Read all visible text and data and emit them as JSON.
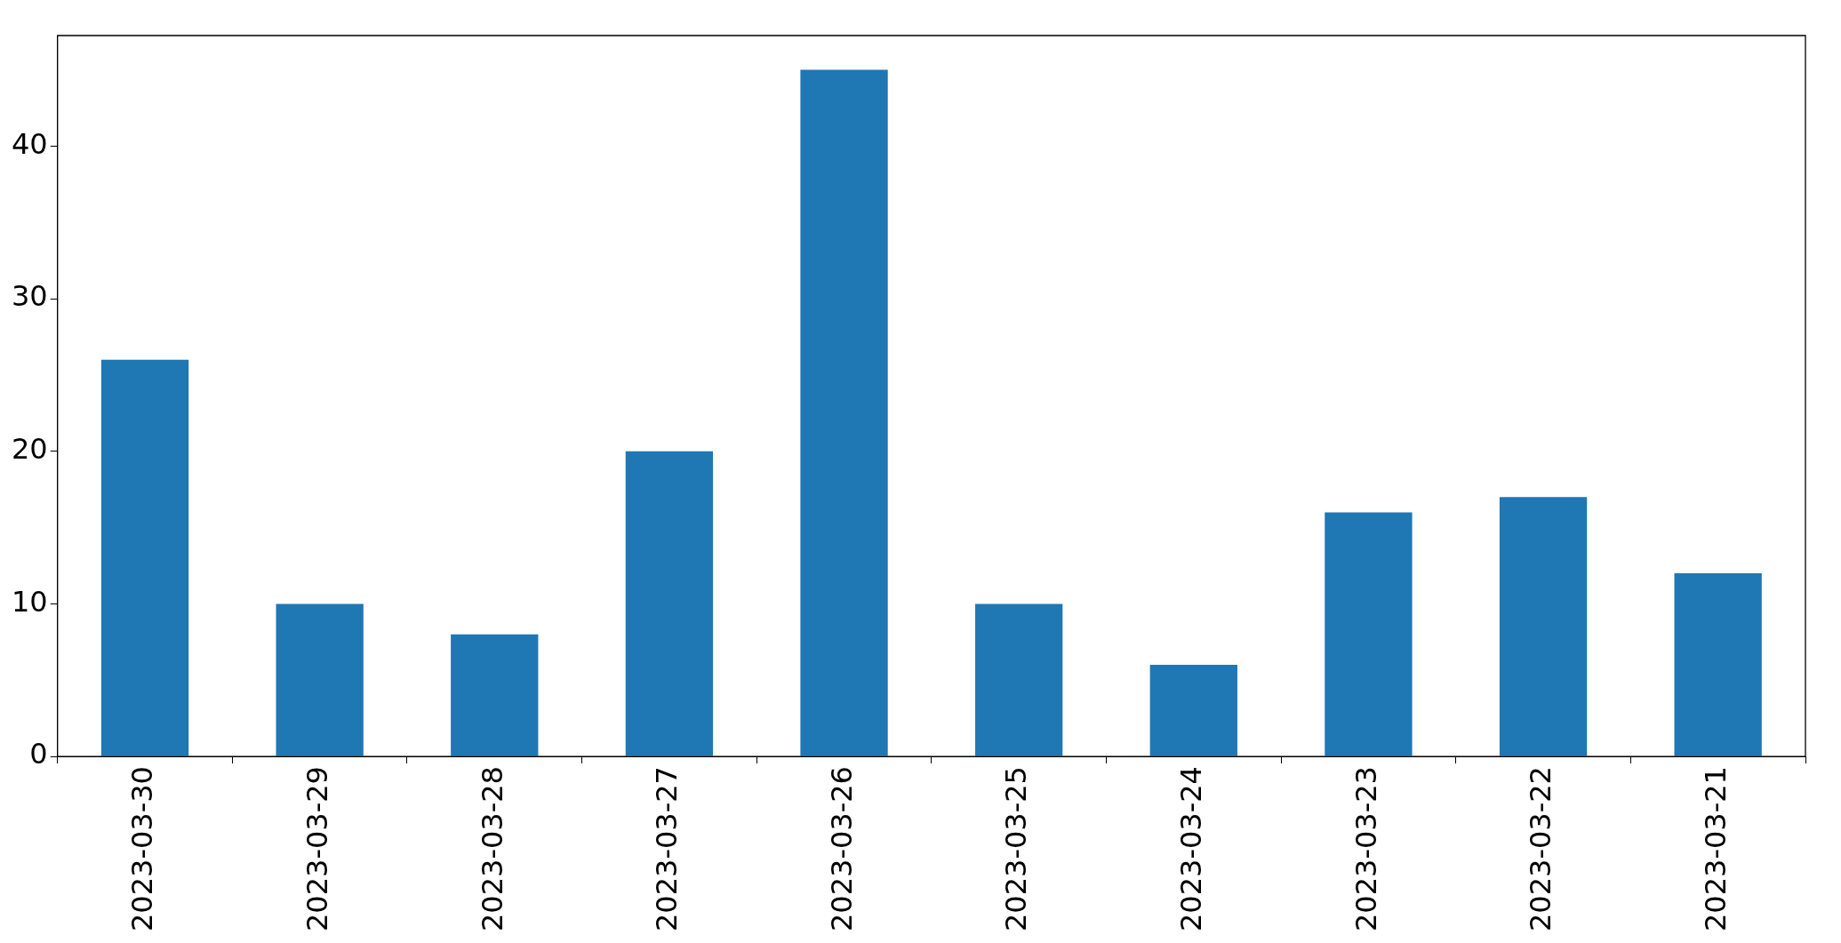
{
  "chart_data": {
    "type": "bar",
    "categories": [
      "2023-03-30",
      "2023-03-29",
      "2023-03-28",
      "2023-03-27",
      "2023-03-26",
      "2023-03-25",
      "2023-03-24",
      "2023-03-23",
      "2023-03-22",
      "2023-03-21"
    ],
    "values": [
      26,
      10,
      8,
      20,
      45,
      10,
      6,
      16,
      17,
      12
    ],
    "color": "#1f77b4",
    "ylim": [
      0,
      47.25
    ],
    "yticks": [
      0,
      10,
      20,
      30,
      40
    ],
    "grid": false,
    "legend": false
  }
}
